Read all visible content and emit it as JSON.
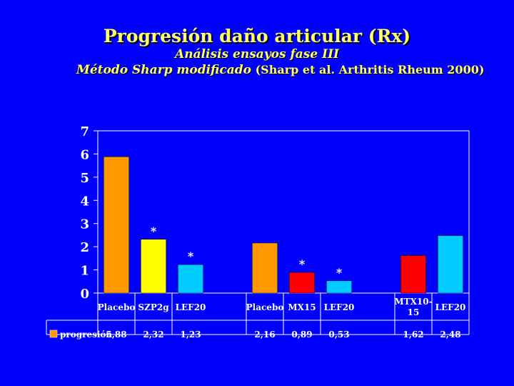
{
  "title": "Progresión daño articular (Rx)",
  "subtitle1": "Análisis ensayos fase III",
  "subtitle2_main": "Método Sharp modificado",
  "subtitle2_ref": "(Sharp et al. Arthritis Rheum 2000)",
  "chart_data": {
    "type": "bar",
    "ylim": [
      0,
      7
    ],
    "yticks": [
      "0",
      "1",
      "2",
      "3",
      "4",
      "5",
      "6",
      "7"
    ],
    "grid": false,
    "legend": {
      "label": "progresión",
      "color": "#FF9900",
      "placement": "bottom-left (data table)"
    },
    "groups": [
      {
        "bars": [
          {
            "label": "Placebo",
            "value": 5.88,
            "value_text": "5,88",
            "color": "#FF9900",
            "star": ""
          },
          {
            "label": "SZP2g",
            "value": 2.32,
            "value_text": "2,32",
            "color": "#FFFF00",
            "star": "*"
          },
          {
            "label": "LEF20",
            "value": 1.23,
            "value_text": "1,23",
            "color": "#00CCFF",
            "star": "*"
          }
        ]
      },
      {
        "bars": [
          {
            "label": "Placebo",
            "value": 2.16,
            "value_text": "2,16",
            "color": "#FF9900",
            "star": ""
          },
          {
            "label": "MX15",
            "value": 0.89,
            "value_text": "0,89",
            "color": "#FF0000",
            "star": "*"
          },
          {
            "label": "LEF20",
            "value": 0.53,
            "value_text": "0,53",
            "color": "#00CCFF",
            "star": "*"
          }
        ]
      },
      {
        "bars": [
          {
            "label": "MTX10-15",
            "label_lines": [
              "MTX10-",
              "15"
            ],
            "value": 1.62,
            "value_text": "1,62",
            "color": "#FF0000",
            "star": ""
          },
          {
            "label": "LEF20",
            "value": 2.48,
            "value_text": "2,48",
            "color": "#00CCFF",
            "star": ""
          }
        ]
      }
    ]
  }
}
